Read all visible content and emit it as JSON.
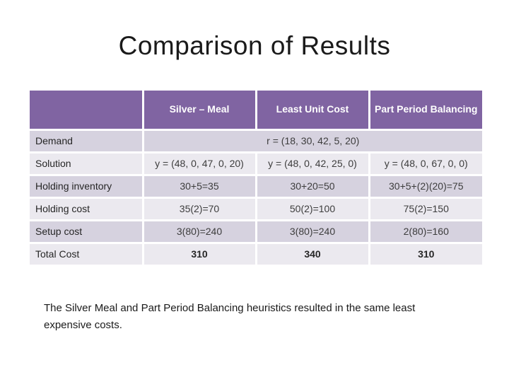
{
  "slide": {
    "title": "Comparison of Results",
    "conclusion": "The Silver Meal and Part Period Balancing heuristics resulted in the same least expensive costs."
  },
  "table": {
    "columns": [
      "",
      "Silver – Meal",
      "Least Unit Cost",
      "Part Period Balancing"
    ],
    "demand": {
      "label": "Demand",
      "value": "r = (18, 30, 42, 5, 20)"
    },
    "rows": [
      {
        "label": "Solution",
        "values": [
          "y = (48, 0, 47, 0, 20)",
          "y = (48, 0, 42, 25, 0)",
          "y = (48, 0, 67, 0, 0)"
        ]
      },
      {
        "label": "Holding inventory",
        "values": [
          "30+5=35",
          "30+20=50",
          "30+5+(2)(20)=75"
        ]
      },
      {
        "label": "Holding cost",
        "values": [
          "35(2)=70",
          "50(2)=100",
          "75(2)=150"
        ]
      },
      {
        "label": "Setup cost",
        "values": [
          "3(80)=240",
          "3(80)=240",
          "2(80)=160"
        ]
      },
      {
        "label": "Total Cost",
        "values": [
          "310",
          "340",
          "310"
        ]
      }
    ],
    "colors": {
      "header_bg": "#8064A2",
      "header_text": "#FFFFFF",
      "band_dark": "#D6D2DF",
      "band_light": "#EBE9EF"
    }
  }
}
